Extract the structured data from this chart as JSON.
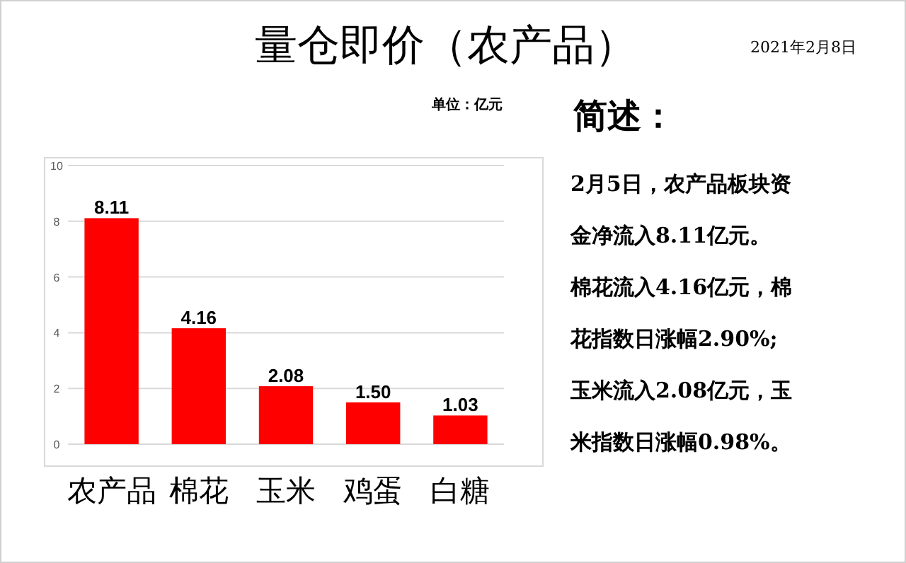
{
  "chart_data": {
    "type": "bar",
    "title": "量仓即价（农产品）",
    "categories": [
      "农产品",
      "棉花",
      "玉米",
      "鸡蛋",
      "白糖"
    ],
    "values": [
      8.11,
      4.16,
      2.08,
      1.5,
      1.03
    ],
    "color": "#ff0000",
    "value_labels": [
      "8.11",
      "4.16",
      "2.08",
      "1.50",
      "1.03"
    ],
    "ylim": [
      0,
      10
    ],
    "yticks": [
      0,
      2,
      4,
      6,
      8,
      10
    ],
    "grid": "y",
    "annotations": [
      "单位：亿元",
      "2021年2月8日",
      "简述：",
      "2月5日，农产品板块资",
      "金净流入8.11亿元。",
      "棉花流入4.16亿元，棉",
      "花指数日涨幅2.90%;",
      "玉米流入2.08亿元，玉",
      "米指数日涨幅0.98%。"
    ]
  }
}
